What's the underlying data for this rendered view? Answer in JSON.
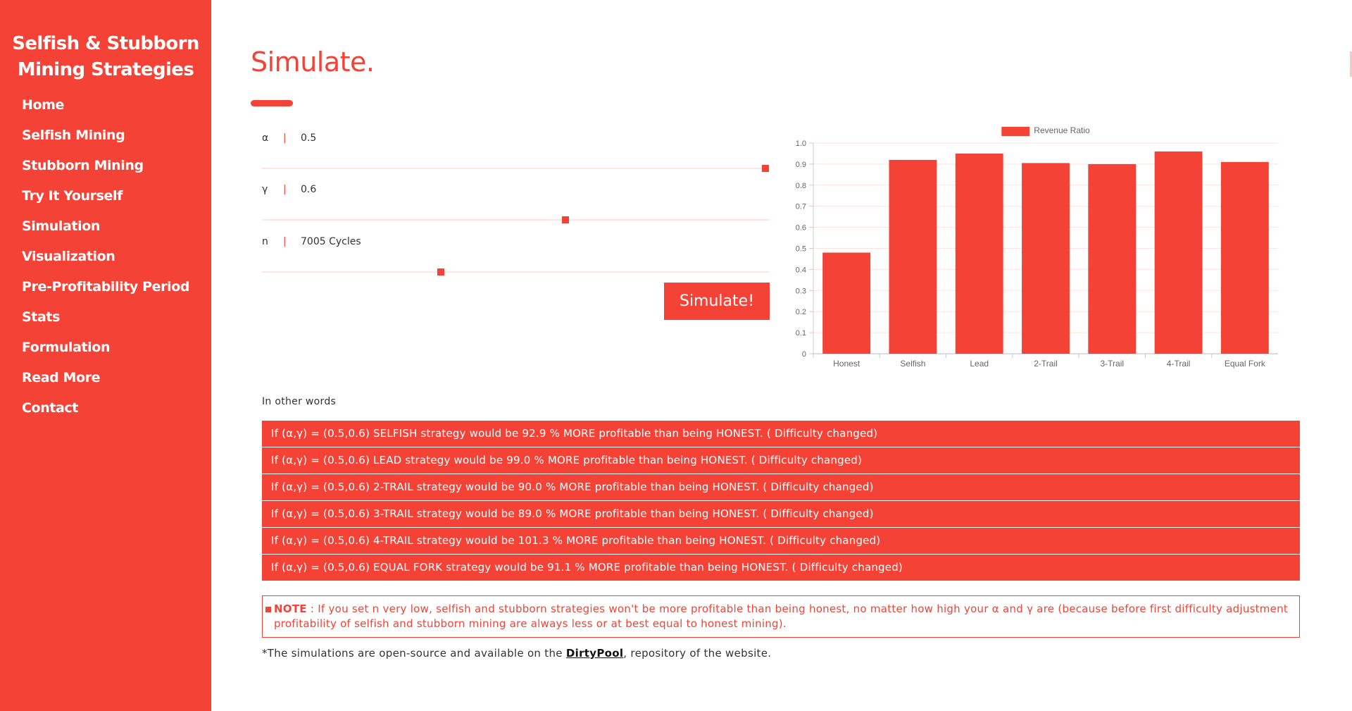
{
  "sidebar": {
    "title_line1": "Selfish & Stubborn",
    "title_line2": "Mining Strategies",
    "items": [
      {
        "label": "Home"
      },
      {
        "label": "Selfish Mining"
      },
      {
        "label": "Stubborn Mining"
      },
      {
        "label": "Try It Yourself"
      },
      {
        "label": "Simulation"
      },
      {
        "label": "Visualization"
      },
      {
        "label": "Pre-Profitability Period"
      },
      {
        "label": "Stats"
      },
      {
        "label": "Formulation"
      },
      {
        "label": "Read More"
      },
      {
        "label": "Contact"
      }
    ],
    "color": "#f44336"
  },
  "main": {
    "title": "Simulate.",
    "params": [
      {
        "symbol": "α",
        "separator": "|",
        "value": "0.5",
        "fraction": 1.0
      },
      {
        "symbol": "γ",
        "separator": "|",
        "value": "0.6",
        "fraction": 0.6
      },
      {
        "symbol": "n",
        "separator": "|",
        "value": "7005 Cycles",
        "fraction": 0.35
      }
    ],
    "simulate_label": "Simulate!",
    "in_other_words": "In other words",
    "results": [
      "If (α,γ) = (0.5,0.6) SELFISH strategy would be 92.9 % MORE profitable than being HONEST. ( Difficulty changed)",
      "If (α,γ) = (0.5,0.6) LEAD strategy would be 99.0 % MORE profitable than being HONEST. ( Difficulty changed)",
      "If (α,γ) = (0.5,0.6) 2-TRAIL strategy would be 90.0 % MORE profitable than being HONEST. ( Difficulty changed)",
      "If (α,γ) = (0.5,0.6) 3-TRAIL strategy would be 89.0 % MORE profitable than being HONEST. ( Difficulty changed)",
      "If (α,γ) = (0.5,0.6) 4-TRAIL strategy would be 101.3 % MORE profitable than being HONEST. ( Difficulty changed)",
      "If (α,γ) = (0.5,0.6) EQUAL FORK strategy would be 91.1 % MORE profitable than being HONEST. ( Difficulty changed)"
    ],
    "note_label": "NOTE",
    "note_text": " : If you set n very low, selfish and stubborn strategies won't be more profitable than being honest, no matter how high your α and γ are (because before first difficulty adjustment profitability of selfish and stubborn mining are always less or at best equal to honest mining).",
    "footnote_prefix": "*The simulations are open-source and available on the ",
    "footnote_link": "DirtyPool",
    "footnote_suffix": ", repository of the website."
  },
  "chart_data": {
    "type": "bar",
    "categories": [
      "Honest",
      "Selfish",
      "Lead",
      "2-Trail",
      "3-Trail",
      "4-Trail",
      "Equal Fork"
    ],
    "series": [
      {
        "name": "Revenue Ratio",
        "values": [
          0.48,
          0.92,
          0.95,
          0.905,
          0.9,
          0.96,
          0.91
        ],
        "color": "#f44336"
      }
    ],
    "yticks": [
      "0",
      "0.1",
      "0.2",
      "0.3",
      "0.4",
      "0.5",
      "0.6",
      "0.7",
      "0.8",
      "0.9",
      "1.0"
    ],
    "ylim": [
      0,
      1.0
    ],
    "legend_position": "top",
    "grid": true
  }
}
